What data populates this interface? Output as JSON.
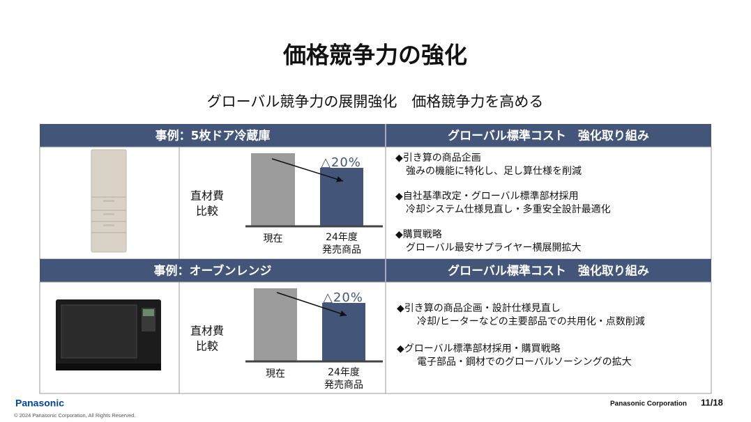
{
  "title": "価格競争力の強化",
  "subtitle": "グローバル競争力の展開強化　価格競争力を高める",
  "sections": [
    {
      "case": "事例：5枚ドア冷蔵庫",
      "measures_header": "グローバル標準コスト　強化取り組み",
      "metric_label": [
        "直材費",
        "比較"
      ],
      "chart": {
        "type": "bar",
        "categories": [
          [
            "現在"
          ],
          [
            "24年度",
            "発売商品"
          ]
        ],
        "values": [
          100,
          80
        ],
        "ylim": [
          0,
          100
        ],
        "colors": [
          "#9b9b9b",
          "#44557a"
        ],
        "annotation": "△20%"
      },
      "measures": [
        {
          "heading": "◆引き算の商品企画",
          "detail": "強みの機能に特化し、足し算仕様を削減"
        },
        {
          "heading": "◆自社基準改定・グローバル標準部材採用",
          "detail": "冷却システム仕様見直し・多重安全設計最適化"
        },
        {
          "heading": "◆購買戦略",
          "detail": "グローバル最安サプライヤー横展開拡大"
        }
      ]
    },
    {
      "case": "事例：オーブンレンジ",
      "measures_header": "グローバル標準コスト　強化取り組み",
      "metric_label": [
        "直材費",
        "比較"
      ],
      "chart": {
        "type": "bar",
        "categories": [
          [
            "現在"
          ],
          [
            "24年度",
            "発売商品"
          ]
        ],
        "values": [
          100,
          80
        ],
        "ylim": [
          0,
          100
        ],
        "colors": [
          "#9b9b9b",
          "#44557a"
        ],
        "annotation": "△20%"
      },
      "measures": [
        {
          "heading": "◆引き算の商品企画・設計仕様見直し",
          "detail": "冷却/ヒーターなどの主要部品での共用化・点数削減"
        },
        {
          "heading": "◆グローバル標準部材採用・購買戦略",
          "detail": "電子部品・鋼材でのグローバルソーシングの拡大"
        }
      ]
    }
  ],
  "footer": {
    "logo": "Panasonic",
    "copyright": "© 2024 Panasonic Corporation, All Rights Reserved.",
    "company": "Panasonic Corporation",
    "page": "11/18"
  }
}
